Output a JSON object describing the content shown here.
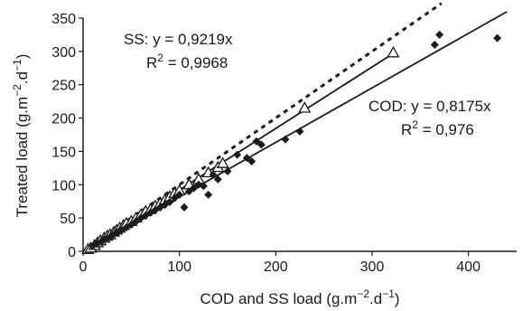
{
  "chart_data": {
    "type": "scatter",
    "title": "",
    "xlabel": "COD and SS load (g.m−2.d−1)",
    "ylabel": "Treated load (g.m−2.d−1)",
    "xlim": [
      0,
      450
    ],
    "ylim": [
      0,
      350
    ],
    "xticks": [
      0,
      100,
      200,
      300,
      400
    ],
    "yticks": [
      0,
      50,
      100,
      150,
      200,
      250,
      300,
      350
    ],
    "grid": false,
    "series": [
      {
        "marker": "open-triangle",
        "color": "#1a1a1a",
        "points": [
          [
            5,
            3
          ],
          [
            8,
            5
          ],
          [
            12,
            9
          ],
          [
            15,
            13
          ],
          [
            18,
            16
          ],
          [
            22,
            20
          ],
          [
            25,
            23
          ],
          [
            28,
            25
          ],
          [
            32,
            29
          ],
          [
            35,
            32
          ],
          [
            38,
            35
          ],
          [
            42,
            39
          ],
          [
            45,
            42
          ],
          [
            50,
            45
          ],
          [
            55,
            50
          ],
          [
            60,
            55
          ],
          [
            65,
            60
          ],
          [
            70,
            63
          ],
          [
            75,
            68
          ],
          [
            80,
            72
          ],
          [
            85,
            77
          ],
          [
            90,
            82
          ],
          [
            95,
            87
          ],
          [
            100,
            91
          ],
          [
            110,
            100
          ],
          [
            120,
            108
          ],
          [
            130,
            118
          ],
          [
            140,
            126
          ],
          [
            145,
            132
          ],
          [
            230,
            215
          ],
          [
            322,
            298
          ]
        ]
      },
      {
        "marker": "filled-diamond",
        "color": "#1a1a1a",
        "points": [
          [
            10,
            8
          ],
          [
            15,
            12
          ],
          [
            20,
            16
          ],
          [
            25,
            20
          ],
          [
            30,
            24
          ],
          [
            35,
            28
          ],
          [
            40,
            32
          ],
          [
            45,
            36
          ],
          [
            50,
            40
          ],
          [
            55,
            45
          ],
          [
            60,
            50
          ],
          [
            65,
            54
          ],
          [
            70,
            58
          ],
          [
            75,
            62
          ],
          [
            80,
            66
          ],
          [
            85,
            70
          ],
          [
            90,
            74
          ],
          [
            95,
            80
          ],
          [
            100,
            85
          ],
          [
            105,
            66
          ],
          [
            110,
            90
          ],
          [
            115,
            95
          ],
          [
            120,
            100
          ],
          [
            125,
            98
          ],
          [
            130,
            85
          ],
          [
            135,
            115
          ],
          [
            140,
            108
          ],
          [
            150,
            120
          ],
          [
            160,
            145
          ],
          [
            170,
            140
          ],
          [
            175,
            135
          ],
          [
            180,
            165
          ],
          [
            185,
            160
          ],
          [
            210,
            168
          ],
          [
            225,
            180
          ],
          [
            365,
            310
          ],
          [
            370,
            325
          ],
          [
            430,
            320
          ]
        ]
      }
    ],
    "fit_lines": [
      {
        "style": "dotted",
        "slope": 1.0,
        "x_range": [
          0,
          372
        ]
      },
      {
        "style": "solid",
        "slope": 0.9219,
        "x_range": [
          0,
          325
        ]
      },
      {
        "style": "solid",
        "slope": 0.8175,
        "x_range": [
          0,
          440
        ]
      }
    ],
    "annotations": [
      {
        "key": "ss_eq",
        "text": "SS: y = 0,9219x",
        "position": "top-left"
      },
      {
        "key": "ss_r2_base",
        "text": "R",
        "sup": "2",
        "rest": " = 0,9968",
        "position": "top-left"
      },
      {
        "key": "cod_eq",
        "text": "COD: y = 0,8175x",
        "position": "right"
      },
      {
        "key": "cod_r2_base",
        "text": "R",
        "sup": "2",
        "rest": " = 0,976",
        "position": "right"
      }
    ]
  }
}
